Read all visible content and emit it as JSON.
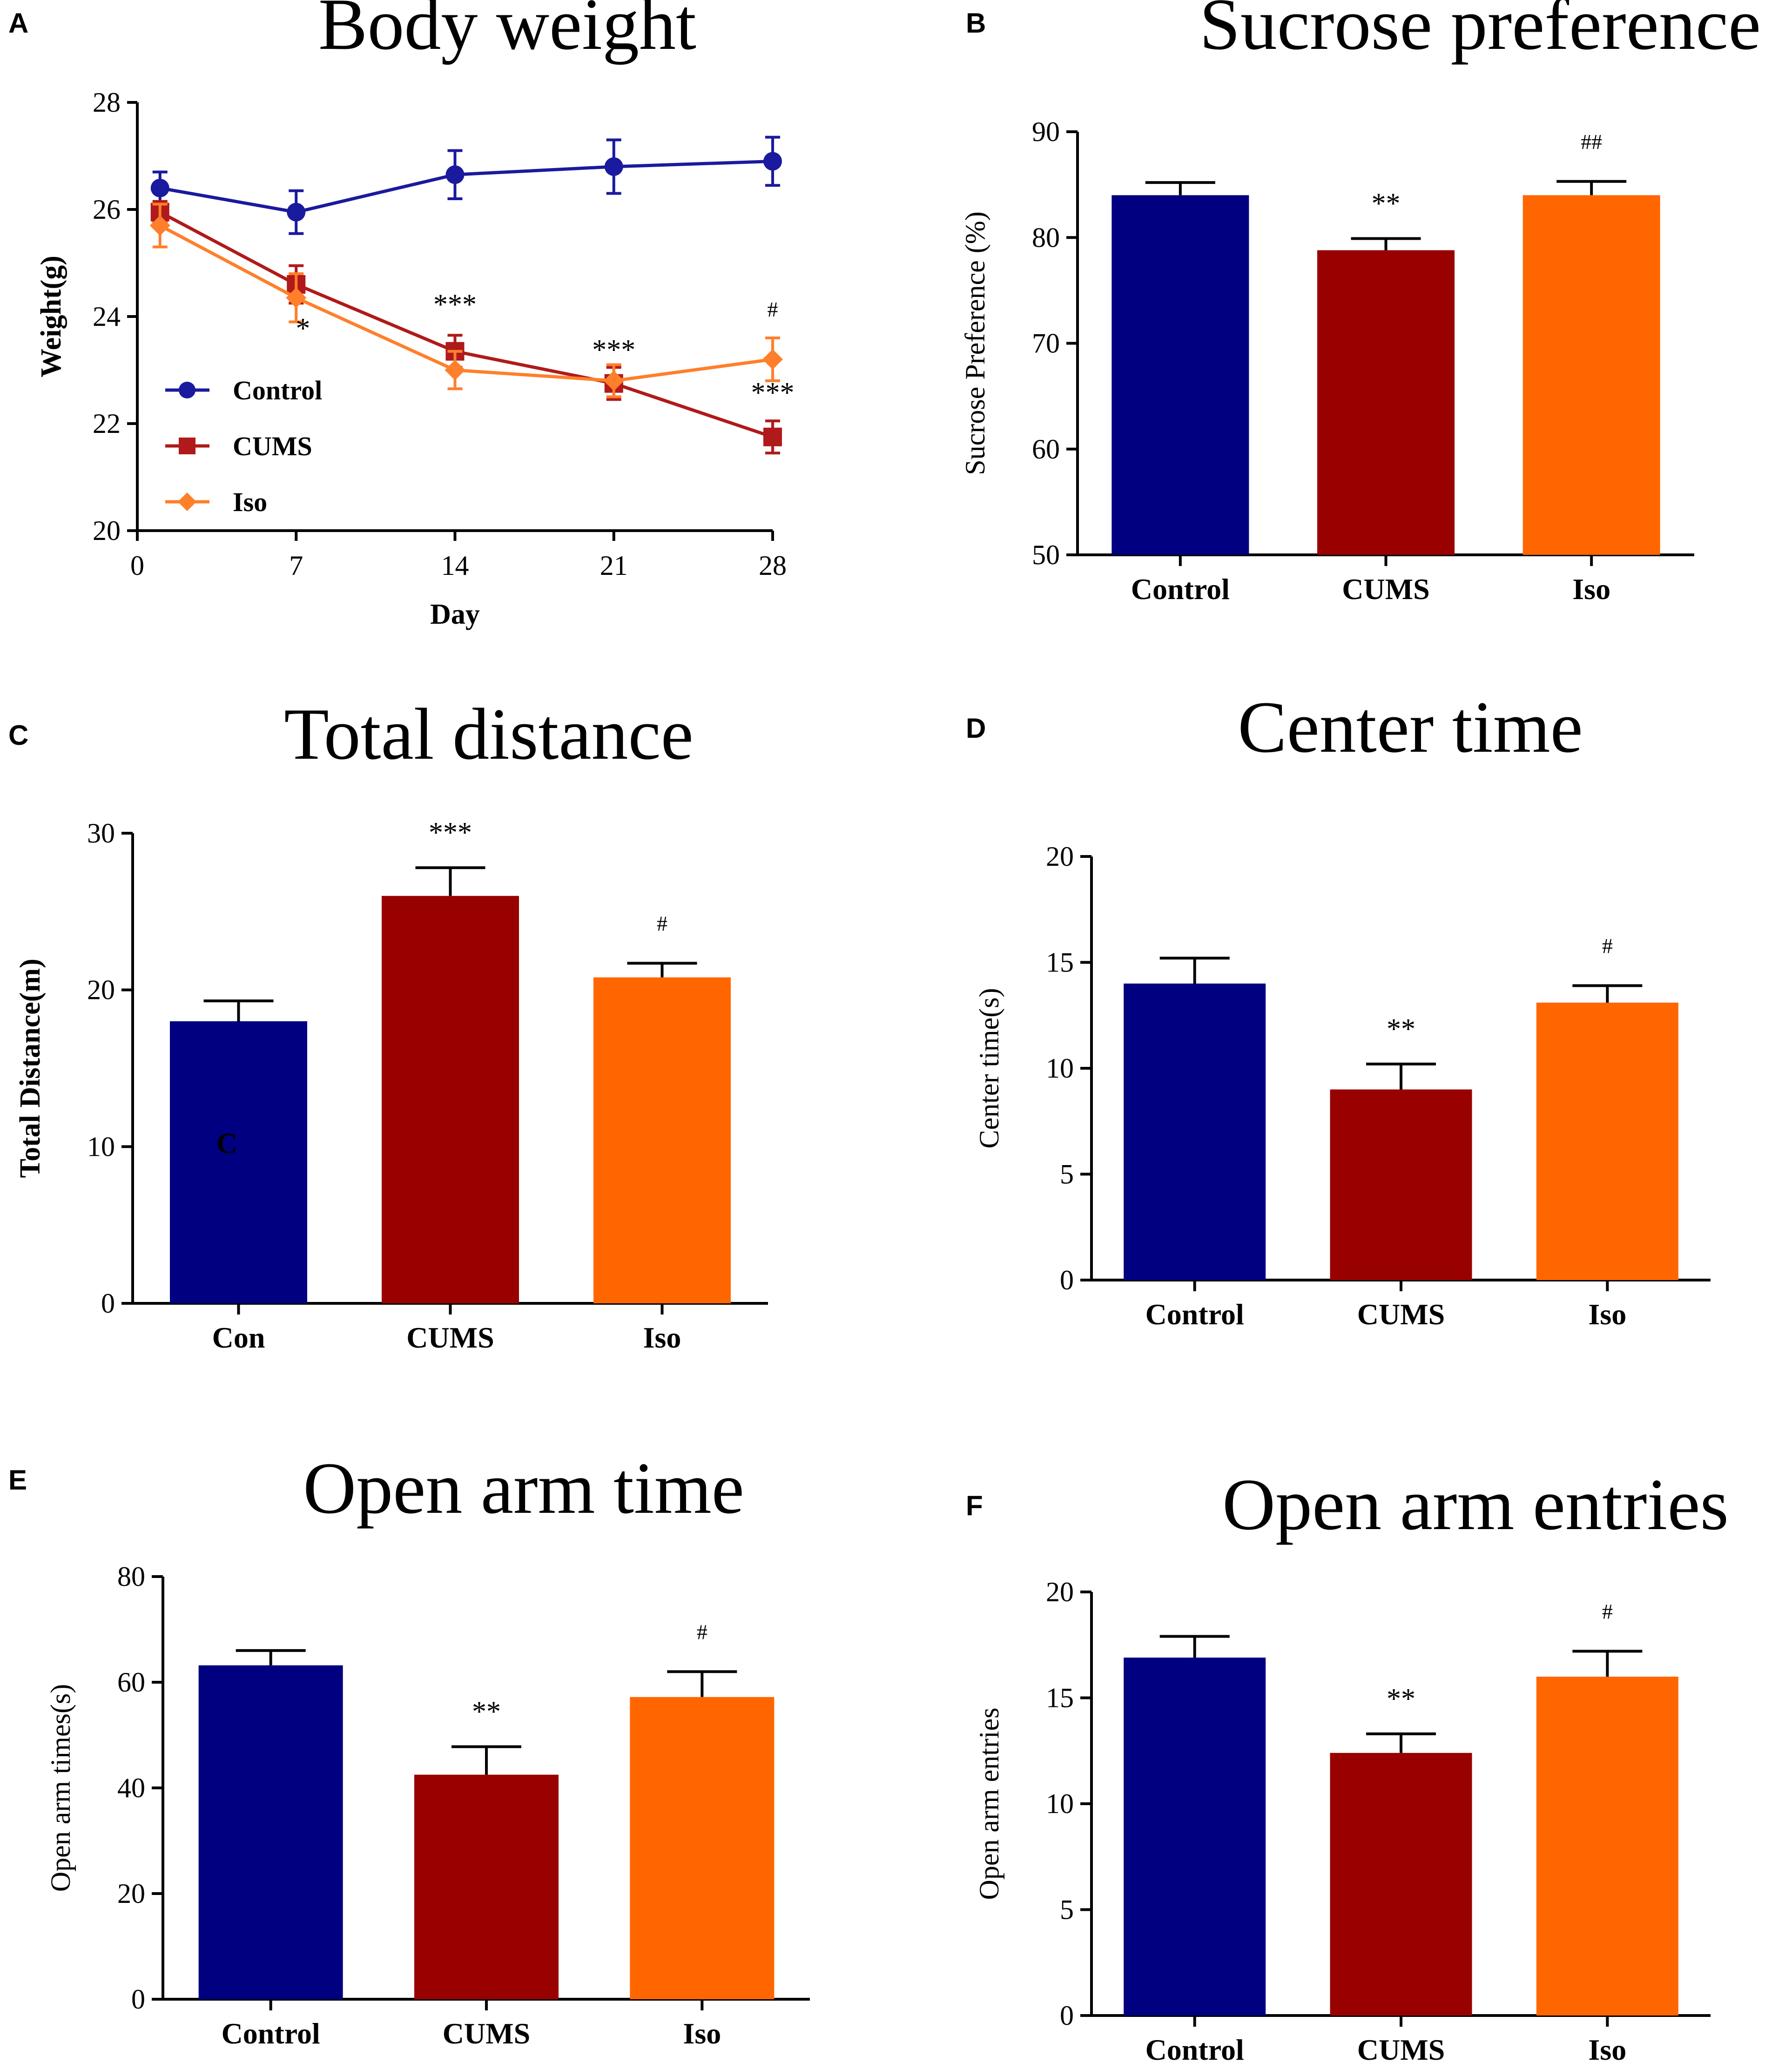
{
  "colors": {
    "control": "#000080",
    "cums": "#990000",
    "iso": "#ff6600",
    "control_line": "#1a1a9e",
    "cums_line": "#b01a1a",
    "iso_line": "#ff7f2a"
  },
  "chart_data": [
    {
      "panel": "A",
      "type": "line",
      "title": "Body weight",
      "xlabel": "Day",
      "ylabel": "Weight(g)",
      "ylim": [
        20,
        28
      ],
      "xlim": [
        0,
        28
      ],
      "xticks": [
        0,
        7,
        14,
        21,
        28
      ],
      "yticks": [
        20,
        22,
        24,
        26,
        28
      ],
      "legend_position": "lower-left",
      "series": [
        {
          "name": "Control",
          "color_key": "control_line",
          "marker": "circle",
          "x": [
            1,
            7,
            14,
            21,
            28
          ],
          "y": [
            26.4,
            25.95,
            26.65,
            26.8,
            26.9
          ],
          "err": [
            0.3,
            0.4,
            0.45,
            0.5,
            0.45
          ]
        },
        {
          "name": "CUMS",
          "color_key": "cums_line",
          "marker": "square",
          "x": [
            1,
            7,
            14,
            21,
            28
          ],
          "y": [
            25.95,
            24.6,
            23.35,
            22.75,
            21.75
          ],
          "err": [
            0.2,
            0.35,
            0.3,
            0.3,
            0.3
          ]
        },
        {
          "name": "Iso",
          "color_key": "iso_line",
          "marker": "diamond",
          "x": [
            1,
            7,
            14,
            21,
            28
          ],
          "y": [
            25.7,
            24.35,
            23.0,
            22.8,
            23.2
          ],
          "err": [
            0.4,
            0.45,
            0.35,
            0.3,
            0.4
          ]
        }
      ],
      "annotations": [
        {
          "text": "*",
          "x": 7.3,
          "y": 23.6
        },
        {
          "text": "***",
          "x": 14,
          "y": 24.05
        },
        {
          "text": "***",
          "x": 21,
          "y": 23.2
        },
        {
          "text": "#",
          "x": 28,
          "y": 24.0,
          "small": true
        },
        {
          "text": "***",
          "x": 28,
          "y": 22.4
        }
      ]
    },
    {
      "panel": "B",
      "type": "bar",
      "title": "Sucrose preference",
      "ylabel": "Sucrose Preference (%)",
      "ylabel_bold": false,
      "ylim": [
        50,
        90
      ],
      "yticks": [
        50,
        60,
        70,
        80,
        90
      ],
      "categories": [
        "Control",
        "CUMS",
        "Iso"
      ],
      "values": [
        84,
        78.8,
        84
      ],
      "err": [
        1.2,
        1.1,
        1.3
      ],
      "sig": [
        "",
        "**",
        "##"
      ]
    },
    {
      "panel": "C",
      "type": "bar",
      "title": "Total distance",
      "ylabel": "Total Distance(m)",
      "ylabel_bold": true,
      "ylim": [
        0,
        30
      ],
      "yticks": [
        0,
        10,
        20,
        30
      ],
      "categories": [
        "Con",
        "CUMS",
        "Iso"
      ],
      "values": [
        18,
        26,
        20.8
      ],
      "err": [
        1.3,
        1.8,
        0.9
      ],
      "sig": [
        "",
        "***",
        "#"
      ],
      "bar_text": [
        "C",
        "",
        ""
      ]
    },
    {
      "panel": "D",
      "type": "bar",
      "title": "Center time",
      "ylabel": "Center time(s)",
      "ylabel_bold": false,
      "ylim": [
        0,
        20
      ],
      "yticks": [
        0,
        5,
        10,
        15,
        20
      ],
      "categories": [
        "Control",
        "CUMS",
        "Iso"
      ],
      "values": [
        14,
        9,
        13.1
      ],
      "err": [
        1.2,
        1.2,
        0.8
      ],
      "sig": [
        "",
        "**",
        "#"
      ]
    },
    {
      "panel": "E",
      "type": "bar",
      "title": "Open arm time",
      "ylabel": "Open arm times(s)",
      "ylabel_bold": false,
      "ylim": [
        0,
        80
      ],
      "yticks": [
        0,
        20,
        40,
        60,
        80
      ],
      "categories": [
        "Control",
        "CUMS",
        "Iso"
      ],
      "values": [
        63.2,
        42.5,
        57.2
      ],
      "err": [
        2.8,
        5.3,
        4.8
      ],
      "sig": [
        "",
        "**",
        "#"
      ]
    },
    {
      "panel": "F",
      "type": "bar",
      "title": "Open arm entries",
      "ylabel": "Open arm entries",
      "ylabel_bold": false,
      "ylim": [
        0,
        20
      ],
      "yticks": [
        0,
        5,
        10,
        15,
        20
      ],
      "categories": [
        "Control",
        "CUMS",
        "Iso"
      ],
      "values": [
        16.9,
        12.4,
        16.0
      ],
      "err": [
        1.0,
        0.9,
        1.2
      ],
      "sig": [
        "",
        "**",
        "#"
      ]
    }
  ]
}
